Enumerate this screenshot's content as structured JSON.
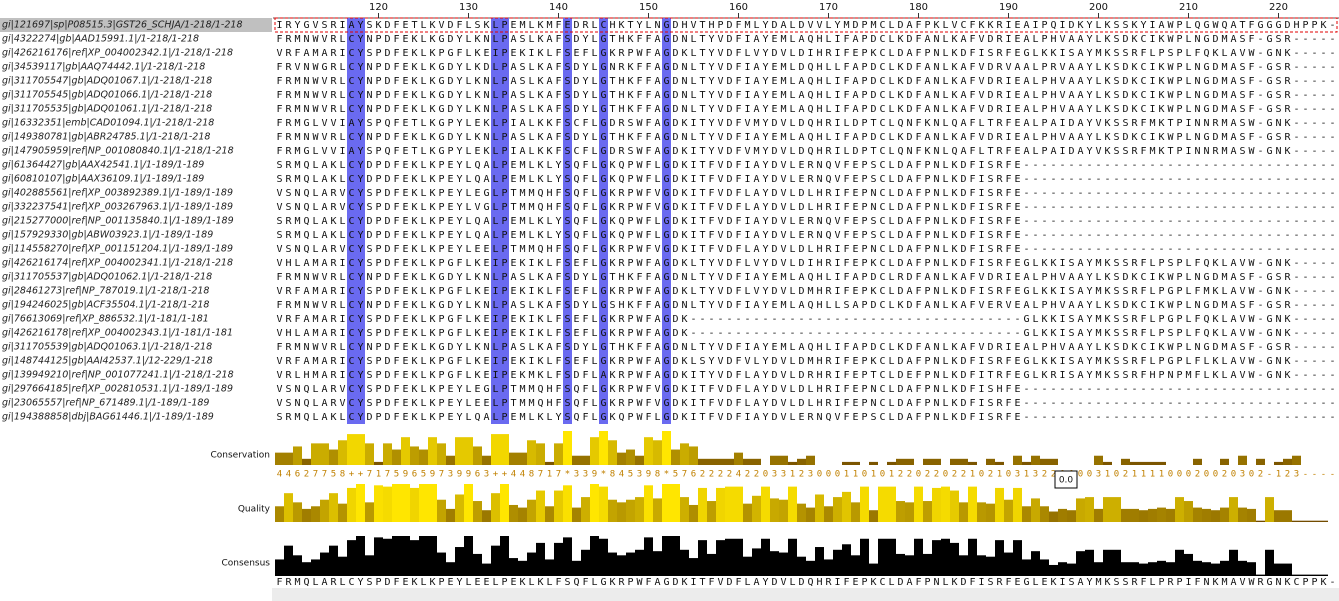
{
  "ruler": {
    "ticks": [
      120,
      130,
      140,
      150,
      160,
      170,
      180,
      190,
      200,
      210,
      220
    ]
  },
  "highlighted_columns": [
    8,
    9,
    24,
    25,
    32,
    36,
    43
  ],
  "sequences": [
    {
      "name": "gi|121697|sp|P08515.3|GST26_SCHJA/1-218/1-218",
      "residues": "IRYGVSRIAYSKDFETLKVDFLSKLPEMLKMFEDRLCHKTYLNGDHVTHPDFMLYDALDVVLYMDPMCLDAFPKLVCFKKRIEAIPQIDKYLKSSKYIAWPLQGWQATFGGGDHPPK-"
    },
    {
      "name": "gi|4322274|gb|AAD15991.1|/1-218/1-218",
      "residues": "FRMNWVRLCYNPDFEKLKGDYLKNLPASLKAFSDYLGTHKFFAGDNLTYVDFIAYEMLAQHLIFAPDCLKDFANLKAFVDRIEALPHVAAYLKSDKCIKWPLNGDMASF-GSR-----"
    },
    {
      "name": "gi|426216176|ref|XP_004002342.1|/1-218/1-218",
      "residues": "VRFAMARICYSPDFEKLKPGFLKEIPEKIKLFSEFLGKRPWFAGDKLTYVDFLVYDVLDIHRIFEPKCLDAFPNLKDFISRFEGLKKISAYMKSSRFLPSPLFQKLAVW-GNK-----"
    },
    {
      "name": "gi|34539117|gb|AAQ74442.1|/1-218/1-218",
      "residues": "FRVNWGRLCYNPDFEKLKGDYLKDLPASLKAFSDYLGNRKFFAGDNLTYVDFIAYEMLDQHLLFAPDCLKDFANLKAFVDRVAALPRVAAYLKSDKCIKWPLNGDMASF-GSR-----"
    },
    {
      "name": "gi|311705547|gb|ADQ01067.1|/1-218/1-218",
      "residues": "FRMNWVRLCYNPDFEKLKGDYLKNLPASLKAFSDYLGTHKFFAGDNLTYVDFIAYEMLAQHLIFAPDCLKDFANLKAFVDRIEALPHVAAYLKSDKCIKWPLNGDMASF-GSR-----"
    },
    {
      "name": "gi|311705545|gb|ADQ01066.1|/1-218/1-218",
      "residues": "FRMNWVRLCYNPDFEKLKGDYLKNLPASLKAFSDYLGTHKFFAGDNLTYVDFIAYEMLAQHLIFAPDCLKDFANLKAFVDRIEALPHVAAYLKSDKCIKWPLNGDMASF-GSR-----"
    },
    {
      "name": "gi|311705535|gb|ADQ01061.1|/1-218/1-218",
      "residues": "FRMNWVRLCYNPDFEKLKGDYLKNLPASLKAFSDYLGTHKFFAGDNLTYVDFIAYEMLAQHLIFAPDCLKDFANLKAFVDRIEALPHVAAYLKSDKCIKWPLNGDMASF-GSR-----"
    },
    {
      "name": "gi|16332351|emb|CAD01094.1|/1-218/1-218",
      "residues": "FRMGLVVIAYSPQFETLKGPYLEKLPIALKKFSCFLGDRSWFAGDKITYVDFVMYDVLDQHRILDPTCLQNFKNLQAFLTRFEALPAIDAYVKSSRFMKTPINNRMASW-GNK-----"
    },
    {
      "name": "gi|149380781|gb|ABR24785.1|/1-218/1-218",
      "residues": "FRMNWVRLCYNPDFEKLKGDYLKNLPASLKAFSDYLGTHKFFAGDNLTYVDFIAYEMLAQHLIFAPDCLKDFANLKAFVDRIEALPHVAAYLKSDKCIKWPLNGDMASF-GSR-----"
    },
    {
      "name": "gi|147905959|ref|NP_001080840.1|/1-218/1-218",
      "residues": "FRMGLVVIAYSPQFETLKGPYLEKLPIALKKFSCFLGDRSWFAGDKITYVDFVMYDVLDQHRILDPTCLQNFKNLQAFLTRFEALPAIDAYVKSSRFMKTPINNRMASW-GNK-----"
    },
    {
      "name": "gi|61364427|gb|AAX42541.1|/1-189/1-189",
      "residues": "SRMQLAKLCYDPDFEKLKPEYLQALPEMLKLYSQFLGKQPWFLGDKITFVDFIAYDVLERNQVFEPSCLDAFPNLKDFISRFE-----------------------------------"
    },
    {
      "name": "gi|60810107|gb|AAX36109.1|/1-189/1-189",
      "residues": "SRMQLAKLCYDPDFEKLKPEYLQALPEMLKLYSQFLGKQPWFLGDKITFVDFIAYDVLERNQVFEPSCLDAFPNLKDFISRFE-----------------------------------"
    },
    {
      "name": "gi|402885561|ref|XP_003892389.1|/1-189/1-189",
      "residues": "VSNQLARVCYSPDFEKLKPEYLEGLPTMMQHFSQFLGKRPWFVGDKITFVDFLAYDVLDLHRIFEPNCLDAFPNLKDFISRFE-----------------------------------"
    },
    {
      "name": "gi|332237541|ref|XP_003267963.1|/1-189/1-189",
      "residues": "VSNQLARVCYSPDFEKLKPEYLVGLPTMMQHFSQFLGKRPWFVGDKITFVDFLAYDVLDLHRIFEPNCLDAFPNLKDFISRFE-----------------------------------"
    },
    {
      "name": "gi|215277000|ref|NP_001135840.1|/1-189/1-189",
      "residues": "SRMQLAKLCYDPDFEKLKPEYLQALPEMLKLYSQFLGKQPWFLGDKITFVDFIAYDVLERNQVFEPSCLDAFPNLKDFISRFE-----------------------------------"
    },
    {
      "name": "gi|157929330|gb|ABW03923.1|/1-189/1-189",
      "residues": "SRMQLAKLCYDPDFEKLKPEYLQALPEMLKLYSQFLGKQPWFLGDKITFVDFIAYDVLERNQVFEPSCLDAFPNLKDFISRFE-----------------------------------"
    },
    {
      "name": "gi|114558270|ref|XP_001151204.1|/1-189/1-189",
      "residues": "VSNQLARVCYSPDFEKLKPEYLEELPTMMQHFSQFLGKRPWFVGDKITFVDFLAYDVLDLHRIFEPNCLDAFPNLKDFISRFE-----------------------------------"
    },
    {
      "name": "gi|426216174|ref|XP_004002341.1|/1-218/1-218",
      "residues": "VHLAMARICYSPDFEKLKPGFLKEIPEKIKLFSEFLGKRPWFAGDKLTYVDFLVYDVLDIHRIFEPKCLDAFPNLKDFISRFEGLKKISAYMKSSRFLPSPLFQKLAVW-GNK-----"
    },
    {
      "name": "gi|311705537|gb|ADQ01062.1|/1-218/1-218",
      "residues": "FRMNWVRLCYNPDFEKLKGDYLKNLPASLKAFSDYLGTHKFFAGDNLTYVDFIAYEMLAQHLIFAPDCLRDFANLKAFVDRIEALPHVAAYLKSDKCIKWPLNGDMASF-GSR-----"
    },
    {
      "name": "gi|28461273|ref|NP_787019.1|/1-218/1-218",
      "residues": "VRFAMARICYSPDFEKLKPGFLKEIPEKIKLFSEFLGKRPWFAGDKLTYVDFLVYDVLDMHRIFEPKCLDAFPNLKDFISRFEGLKKISAYMKSSRFLPGPLFMKLAVW-GNK-----"
    },
    {
      "name": "gi|194246025|gb|ACF35504.1|/1-218/1-218",
      "residues": "FRMNWVRLCYNPDFEKLKGDYLKNLPASLKAFSDYLGSHKFFAGDNLTYVDFIAYEMLAQHLLSAPDCLKDFANLKAFVERVEALPHVAAYLKSDKCIKWPLNGDMASF-GSR-----"
    },
    {
      "name": "gi|76613069|ref|XP_886532.1|/1-181/1-181",
      "residues": "VRFAMARICYSPDFEKLKPGFLKEIPEKIKLFSEFLGKRPWFAGDK-------------------------------------GLKKISAYMKSSRFLPGPLFQKLAVW-GNK-----"
    },
    {
      "name": "gi|426216178|ref|XP_004002343.1|/1-181/1-181",
      "residues": "VHLAMARICYSPDFEKLKPGFLKEIPEKIKLFSEFLGKRPWFAGDK-------------------------------------GLKKISAYMKSSRFLPSPLFQKLAVW-GNK-----"
    },
    {
      "name": "gi|311705539|gb|ADQ01063.1|/1-218/1-218",
      "residues": "FRMNWVRLCYNPDFEKLKGDYLKNLPASLKAFSDYLGTHKFFAGDNLTYVDFIAYEMLAQHLIFAPDCLKDFANLKAFVDRIEALPHVAAYLKSDKCIKWPLNGDMASF-GSR-----"
    },
    {
      "name": "gi|148744125|gb|AAI42537.1|/12-229/1-218",
      "residues": "VRFAMARICYSPDFEKLKPGFLKEIPEKIKLFSEFLGKRPWFAGDKLSYVDFVLYDVLDMHRIFEPKCLDAFPNLKDFISRFEGLKKISAYMKSSRFLPGPLFLKLAVW-GNK-----"
    },
    {
      "name": "gi|139949210|ref|NP_001077241.1|/1-218/1-218",
      "residues": "VRLHMARICYSPDFEKLKPGFLKEIPEKMKLFSDFLAKRPWFAGDKITYVDFLAYDVLDRHRIFEPTCLDEFPNLKDFITRFEGLKRISAYMKSSRFHPNPMFLKLAVW-GNK-----"
    },
    {
      "name": "gi|297664185|ref|XP_002810531.1|/1-189/1-189",
      "residues": "VSNQLARVCYSPDFEKLKPEYLEGLPTMMQHFSQFLGKRPWFVGDKITFVDFLAYDVLDLHRIFEPNCLDAFPNLKDFISHFE-----------------------------------"
    },
    {
      "name": "gi|23065557|ref|NP_671489.1|/1-189/1-189",
      "residues": "VSNQLARVCYSPDFEKLKPEYLEELPTMMQHFSQFLGKRPWFVGDKITFVDFLAYDVLDLHRIFEPNCLDAFPNLKDFISRFE-----------------------------------"
    },
    {
      "name": "gi|194388858|dbj|BAG61446.1|/1-189/1-189",
      "residues": "SRMQLAKLCYDPDFEKLKPEYLQALPEMLKLYSQFLGKQPWFLGDKITFVDFIAYDVLERNQVFEPSCLDAFPNLKDFISRFE-----------------------------------"
    }
  ],
  "annotations": {
    "conservation": {
      "label": "Conservation",
      "scores": [
        "4",
        "4",
        "6",
        "2",
        "7",
        "7",
        "5",
        "8",
        "+",
        "+",
        "7",
        "1",
        "7",
        "5",
        "9",
        "6",
        "5",
        "9",
        "7",
        "3",
        "9",
        "9",
        "6",
        "3",
        "+",
        "+",
        "4",
        "4",
        "8",
        "7",
        "1",
        "7",
        "*",
        "3",
        "3",
        "9",
        "*",
        "8",
        "4",
        "5",
        "3",
        "9",
        "8",
        "*",
        "5",
        "7",
        "6",
        "2",
        "2",
        "2",
        "2",
        "4",
        "2",
        "2",
        "0",
        "3",
        "3",
        "1",
        "2",
        "3",
        "0",
        "0",
        "0",
        "1",
        "1",
        "0",
        "1",
        "0",
        "1",
        "2",
        "2",
        "0",
        "2",
        "2",
        "0",
        "2",
        "2",
        "1",
        "0",
        "2",
        "1",
        "0",
        "3",
        "1",
        "3",
        "2",
        "2",
        "0",
        "0",
        "0",
        "0",
        "3",
        "1",
        "0",
        "2",
        "1",
        "1",
        "1",
        "1",
        "0",
        "0",
        "0",
        "2",
        "0",
        "0",
        "2",
        "0",
        "3",
        "0",
        "2",
        "-",
        "1",
        "2",
        "3",
        "-",
        "-",
        "-",
        "-"
      ]
    },
    "quality": {
      "label": "Quality"
    },
    "consensus": {
      "label": "Consensus",
      "sequence": "FRMQLARLCYSPDFEKLKPEYLEELPEKLKLFSQFLGKRPWFAGDKITFVDFLAYDVLDQHRIFEPKCLDAFPNLKDFISRFEGLEKISAYMKSSRFLPRPIFNKMAVWRGNKCPPK-"
    }
  },
  "tooltip": "0.0"
}
